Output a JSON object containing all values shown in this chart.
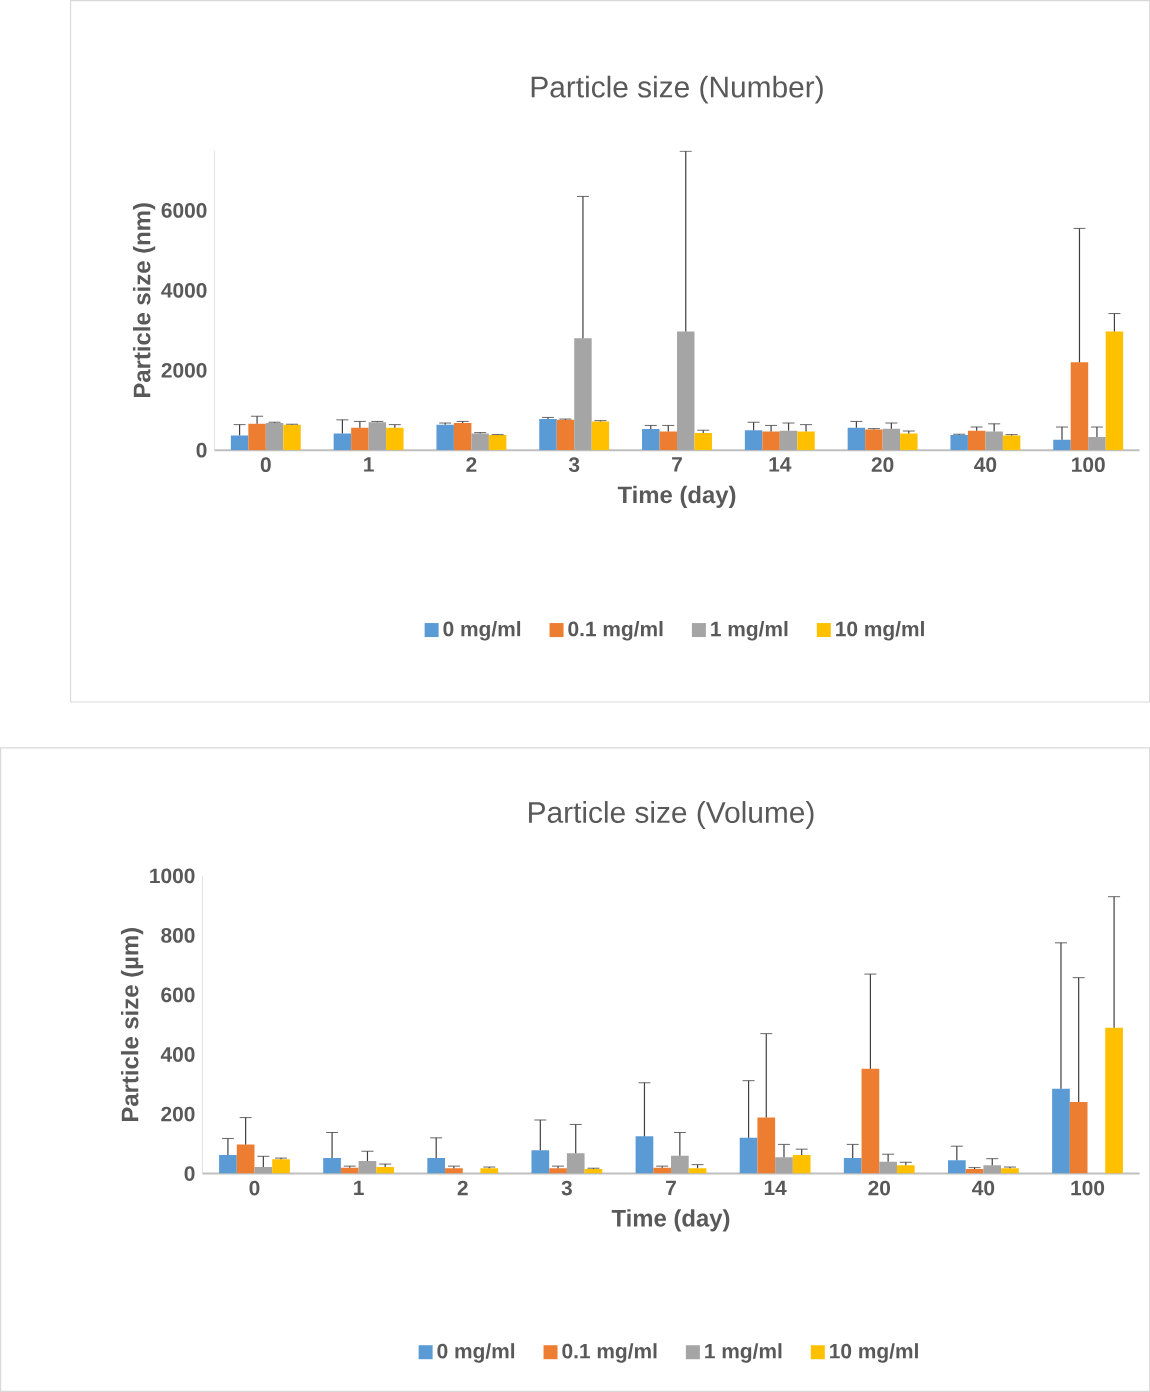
{
  "chart_data": [
    {
      "type": "bar",
      "title": "Particle size (Number)",
      "xlabel": "Time (day)",
      "ylabel": "Particle size (nm)",
      "categories": [
        "0",
        "1",
        "2",
        "3",
        "7",
        "14",
        "20",
        "40",
        "100"
      ],
      "ylim": [
        0,
        7500
      ],
      "yticks": [
        0,
        2000,
        4000,
        6000
      ],
      "legend": "bottom",
      "series": [
        {
          "name": "0 mg/ml",
          "color": "#5b9bd5",
          "values": [
            370,
            420,
            640,
            780,
            530,
            500,
            560,
            380,
            260
          ],
          "errors": [
            [
              370,
              640
            ],
            [
              420,
              760
            ],
            [
              640,
              680
            ],
            [
              780,
              820
            ],
            [
              530,
              620
            ],
            [
              500,
              700
            ],
            [
              560,
              720
            ],
            [
              380,
              400
            ],
            [
              260,
              580
            ]
          ]
        },
        {
          "name": "0.1 mg/ml",
          "color": "#ed7d31",
          "values": [
            660,
            560,
            680,
            760,
            470,
            470,
            520,
            490,
            2200
          ],
          "errors": [
            [
              660,
              850
            ],
            [
              560,
              720
            ],
            [
              680,
              720
            ],
            [
              760,
              780
            ],
            [
              470,
              620
            ],
            [
              470,
              620
            ],
            [
              520,
              540
            ],
            [
              490,
              580
            ],
            [
              2200,
              5550
            ]
          ]
        },
        {
          "name": "1 mg/ml",
          "color": "#a5a5a5",
          "values": [
            680,
            700,
            420,
            2800,
            2970,
            490,
            540,
            470,
            330
          ],
          "errors": [
            [
              680,
              700
            ],
            [
              700,
              720
            ],
            [
              420,
              440
            ],
            [
              2800,
              6350
            ],
            [
              2970,
              7480
            ],
            [
              490,
              680
            ],
            [
              540,
              680
            ],
            [
              470,
              660
            ],
            [
              330,
              580
            ]
          ]
        },
        {
          "name": "10 mg/ml",
          "color": "#ffc000",
          "values": [
            640,
            560,
            380,
            720,
            430,
            470,
            420,
            370,
            2970
          ],
          "errors": [
            [
              640,
              650
            ],
            [
              560,
              640
            ],
            [
              380,
              390
            ],
            [
              720,
              740
            ],
            [
              430,
              500
            ],
            [
              470,
              640
            ],
            [
              420,
              480
            ],
            [
              370,
              390
            ],
            [
              2970,
              3420
            ]
          ]
        }
      ]
    },
    {
      "type": "bar",
      "title": "Particle size (Volume)",
      "xlabel": "Time (day)",
      "ylabel": "Particle size (µm)",
      "categories": [
        "0",
        "1",
        "2",
        "3",
        "7",
        "14",
        "20",
        "40",
        "100"
      ],
      "ylim": [
        0,
        1000
      ],
      "yticks": [
        0,
        200,
        400,
        600,
        800,
        1000
      ],
      "legend": "bottom",
      "series": [
        {
          "name": "0 mg/ml",
          "color": "#5b9bd5",
          "values": [
            62,
            52,
            52,
            78,
            125,
            120,
            52,
            45,
            285
          ],
          "errors": [
            [
              62,
              118
            ],
            [
              52,
              138
            ],
            [
              52,
              120
            ],
            [
              78,
              180
            ],
            [
              125,
              305
            ],
            [
              120,
              312
            ],
            [
              52,
              98
            ],
            [
              45,
              92
            ],
            [
              285,
              775
            ]
          ]
        },
        {
          "name": "0.1 mg/ml",
          "color": "#ed7d31",
          "values": [
            98,
            20,
            18,
            18,
            20,
            188,
            352,
            15,
            240
          ],
          "errors": [
            [
              98,
              188
            ],
            [
              20,
              25
            ],
            [
              18,
              25
            ],
            [
              18,
              25
            ],
            [
              20,
              25
            ],
            [
              188,
              470
            ],
            [
              352,
              670
            ],
            [
              15,
              20
            ],
            [
              240,
              658
            ]
          ]
        },
        {
          "name": "1 mg/ml",
          "color": "#a5a5a5",
          "values": [
            22,
            42,
            null,
            68,
            60,
            55,
            40,
            28,
            null
          ],
          "errors": [
            [
              22,
              58
            ],
            [
              42,
              75
            ],
            null,
            [
              68,
              165
            ],
            [
              60,
              138
            ],
            [
              55,
              98
            ],
            [
              40,
              65
            ],
            [
              28,
              50
            ],
            null
          ]
        },
        {
          "name": "10 mg/ml",
          "color": "#ffc000",
          "values": [
            48,
            22,
            18,
            15,
            18,
            62,
            28,
            18,
            490
          ],
          "errors": [
            [
              48,
              52
            ],
            [
              22,
              32
            ],
            [
              18,
              22
            ],
            [
              15,
              18
            ],
            [
              18,
              30
            ],
            [
              62,
              82
            ],
            [
              28,
              38
            ],
            [
              18,
              22
            ],
            [
              490,
              930
            ]
          ]
        }
      ]
    }
  ]
}
